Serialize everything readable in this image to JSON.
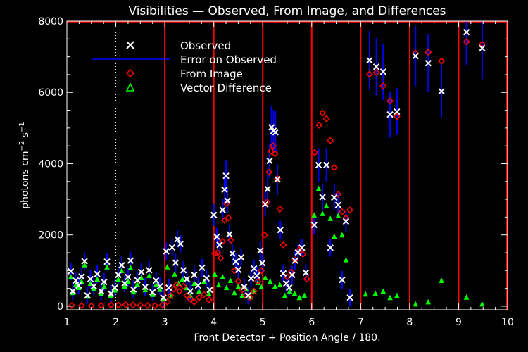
{
  "chart_data": {
    "type": "scatter",
    "title": "Visibilities — Observed, From Image, and Differences",
    "xlabel": "Front Detector + Position Angle / 180.",
    "ylabel_main": "photons cm",
    "ylabel_exp1": "−2",
    "ylabel_mid": " s",
    "ylabel_exp2": "−1",
    "xlim": [
      1,
      10
    ],
    "ylim": [
      -100,
      8000
    ],
    "xticks": [
      "1",
      "2",
      "3",
      "4",
      "5",
      "6",
      "7",
      "8",
      "9",
      "10"
    ],
    "yticks": [
      "0",
      "2000",
      "4000",
      "6000",
      "8000"
    ],
    "ytick_values": [
      0,
      2000,
      4000,
      6000,
      8000
    ],
    "detector_boundaries": [
      3,
      4,
      5,
      6,
      7,
      8,
      9
    ],
    "dotted_line_x": 2,
    "colors": {
      "observed": "#ffffff",
      "error": "#0000ff",
      "image": "#ff0000",
      "difference": "#00ff00",
      "boundary": "#ff0000",
      "axes": "#ffffff"
    },
    "legend": {
      "placement": "top-left",
      "entries": [
        {
          "label": "Observed",
          "marker": "x"
        },
        {
          "label": "Error on Observed",
          "marker": "line"
        },
        {
          "label": "From Image",
          "marker": "diamond"
        },
        {
          "label": "Vector Difference",
          "marker": "triangle"
        }
      ]
    },
    "series": [
      {
        "name": "Observed",
        "points": [
          [
            1.08,
            980
          ],
          [
            1.12,
            420
          ],
          [
            1.18,
            720
          ],
          [
            1.24,
            580
          ],
          [
            1.3,
            830
          ],
          [
            1.36,
            1260
          ],
          [
            1.42,
            300
          ],
          [
            1.48,
            760
          ],
          [
            1.55,
            560
          ],
          [
            1.62,
            900
          ],
          [
            1.7,
            420
          ],
          [
            1.76,
            680
          ],
          [
            1.82,
            1250
          ],
          [
            1.9,
            350
          ],
          [
            1.98,
            520
          ],
          [
            2.05,
            880
          ],
          [
            2.12,
            1150
          ],
          [
            2.18,
            640
          ],
          [
            2.25,
            820
          ],
          [
            2.3,
            1280
          ],
          [
            2.36,
            470
          ],
          [
            2.44,
            730
          ],
          [
            2.52,
            960
          ],
          [
            2.6,
            540
          ],
          [
            2.68,
            1010
          ],
          [
            2.75,
            390
          ],
          [
            2.82,
            720
          ],
          [
            2.9,
            560
          ],
          [
            2.97,
            240
          ],
          [
            3.03,
            1540
          ],
          [
            3.08,
            520
          ],
          [
            3.15,
            1650
          ],
          [
            3.22,
            1220
          ],
          [
            3.26,
            1880
          ],
          [
            3.32,
            1750
          ],
          [
            3.38,
            1010
          ],
          [
            3.45,
            760
          ],
          [
            3.52,
            420
          ],
          [
            3.6,
            880
          ],
          [
            3.68,
            580
          ],
          [
            3.76,
            1080
          ],
          [
            3.85,
            780
          ],
          [
            3.92,
            460
          ],
          [
            4.0,
            2560
          ],
          [
            4.06,
            1950
          ],
          [
            4.12,
            1720
          ],
          [
            4.18,
            2700
          ],
          [
            4.22,
            3270
          ],
          [
            4.25,
            3660
          ],
          [
            4.28,
            2960
          ],
          [
            4.32,
            2020
          ],
          [
            4.38,
            1480
          ],
          [
            4.45,
            1250
          ],
          [
            4.5,
            1020
          ],
          [
            4.56,
            1370
          ],
          [
            4.62,
            540
          ],
          [
            4.7,
            300
          ],
          [
            4.76,
            780
          ],
          [
            4.82,
            1060
          ],
          [
            4.88,
            860
          ],
          [
            4.95,
            1560
          ],
          [
            4.99,
            1210
          ],
          [
            5.05,
            2860
          ],
          [
            5.1,
            3290
          ],
          [
            5.14,
            4080
          ],
          [
            5.18,
            5020
          ],
          [
            5.22,
            4920
          ],
          [
            5.26,
            4880
          ],
          [
            5.3,
            3560
          ],
          [
            5.36,
            2140
          ],
          [
            5.42,
            920
          ],
          [
            5.48,
            640
          ],
          [
            5.54,
            520
          ],
          [
            5.6,
            880
          ],
          [
            5.66,
            1280
          ],
          [
            5.72,
            1510
          ],
          [
            5.8,
            1640
          ],
          [
            5.88,
            940
          ],
          [
            6.05,
            2280
          ],
          [
            6.14,
            3960
          ],
          [
            6.22,
            3060
          ],
          [
            6.3,
            3960
          ],
          [
            6.38,
            1640
          ],
          [
            6.46,
            3050
          ],
          [
            6.54,
            2840
          ],
          [
            6.62,
            740
          ],
          [
            6.7,
            2380
          ],
          [
            6.78,
            240
          ],
          [
            7.18,
            6900
          ],
          [
            7.32,
            6720
          ],
          [
            7.46,
            6580
          ],
          [
            7.6,
            5380
          ],
          [
            7.74,
            5460
          ],
          [
            8.12,
            7020
          ],
          [
            8.38,
            6820
          ],
          [
            8.65,
            6030
          ],
          [
            9.16,
            7690
          ],
          [
            9.48,
            7240
          ]
        ]
      },
      {
        "name": "From Image",
        "points": [
          [
            1.1,
            20
          ],
          [
            1.3,
            15
          ],
          [
            1.5,
            10
          ],
          [
            1.7,
            20
          ],
          [
            1.9,
            30
          ],
          [
            2.05,
            35
          ],
          [
            2.2,
            40
          ],
          [
            2.35,
            30
          ],
          [
            2.5,
            25
          ],
          [
            2.65,
            20
          ],
          [
            2.8,
            15
          ],
          [
            2.95,
            30
          ],
          [
            3.05,
            120
          ],
          [
            3.12,
            300
          ],
          [
            3.18,
            480
          ],
          [
            3.24,
            600
          ],
          [
            3.3,
            420
          ],
          [
            3.38,
            560
          ],
          [
            3.45,
            300
          ],
          [
            3.52,
            200
          ],
          [
            3.6,
            120
          ],
          [
            3.7,
            240
          ],
          [
            3.8,
            330
          ],
          [
            3.9,
            180
          ],
          [
            4.02,
            1480
          ],
          [
            4.08,
            1500
          ],
          [
            4.14,
            1350
          ],
          [
            4.18,
            1820
          ],
          [
            4.22,
            2410
          ],
          [
            4.26,
            2880
          ],
          [
            4.3,
            2480
          ],
          [
            4.35,
            1850
          ],
          [
            4.42,
            1000
          ],
          [
            4.5,
            700
          ],
          [
            4.58,
            460
          ],
          [
            4.66,
            300
          ],
          [
            4.74,
            250
          ],
          [
            4.82,
            420
          ],
          [
            4.9,
            700
          ],
          [
            4.97,
            1000
          ],
          [
            5.04,
            2000
          ],
          [
            5.09,
            2920
          ],
          [
            5.13,
            3760
          ],
          [
            5.17,
            4350
          ],
          [
            5.21,
            4500
          ],
          [
            5.25,
            4280
          ],
          [
            5.3,
            3580
          ],
          [
            5.35,
            2730
          ],
          [
            5.42,
            1720
          ],
          [
            5.5,
            820
          ],
          [
            5.58,
            960
          ],
          [
            5.66,
            1300
          ],
          [
            5.74,
            1580
          ],
          [
            5.82,
            1460
          ],
          [
            5.9,
            760
          ],
          [
            6.06,
            4310
          ],
          [
            6.15,
            5080
          ],
          [
            6.22,
            5420
          ],
          [
            6.3,
            5260
          ],
          [
            6.38,
            4650
          ],
          [
            6.46,
            3890
          ],
          [
            6.54,
            3140
          ],
          [
            6.62,
            2650
          ],
          [
            6.7,
            2480
          ],
          [
            6.78,
            2700
          ],
          [
            7.18,
            6510
          ],
          [
            7.32,
            6560
          ],
          [
            7.46,
            6180
          ],
          [
            7.6,
            5760
          ],
          [
            7.74,
            5320
          ],
          [
            8.12,
            7100
          ],
          [
            8.38,
            7130
          ],
          [
            8.65,
            6880
          ],
          [
            9.16,
            7420
          ],
          [
            9.48,
            7350
          ]
        ]
      },
      {
        "name": "Vector Difference",
        "points": [
          [
            1.08,
            820
          ],
          [
            1.12,
            380
          ],
          [
            1.18,
            600
          ],
          [
            1.24,
            520
          ],
          [
            1.3,
            700
          ],
          [
            1.36,
            1160
          ],
          [
            1.42,
            280
          ],
          [
            1.48,
            640
          ],
          [
            1.55,
            500
          ],
          [
            1.62,
            760
          ],
          [
            1.7,
            360
          ],
          [
            1.76,
            560
          ],
          [
            1.82,
            1100
          ],
          [
            1.9,
            300
          ],
          [
            1.98,
            450
          ],
          [
            2.05,
            760
          ],
          [
            2.12,
            1000
          ],
          [
            2.18,
            560
          ],
          [
            2.25,
            700
          ],
          [
            2.3,
            1080
          ],
          [
            2.36,
            400
          ],
          [
            2.44,
            620
          ],
          [
            2.52,
            800
          ],
          [
            2.6,
            460
          ],
          [
            2.68,
            860
          ],
          [
            2.75,
            330
          ],
          [
            2.82,
            600
          ],
          [
            2.9,
            470
          ],
          [
            2.97,
            200
          ],
          [
            3.05,
            1100
          ],
          [
            3.12,
            280
          ],
          [
            3.2,
            900
          ],
          [
            3.28,
            640
          ],
          [
            3.36,
            760
          ],
          [
            3.44,
            520
          ],
          [
            3.52,
            300
          ],
          [
            3.6,
            640
          ],
          [
            3.7,
            420
          ],
          [
            3.8,
            700
          ],
          [
            3.9,
            360
          ],
          [
            4.02,
            900
          ],
          [
            4.1,
            600
          ],
          [
            4.18,
            820
          ],
          [
            4.26,
            520
          ],
          [
            4.34,
            720
          ],
          [
            4.42,
            380
          ],
          [
            4.5,
            560
          ],
          [
            4.58,
            300
          ],
          [
            4.66,
            480
          ],
          [
            4.74,
            260
          ],
          [
            4.82,
            420
          ],
          [
            4.9,
            660
          ],
          [
            4.97,
            540
          ],
          [
            5.05,
            800
          ],
          [
            5.15,
            700
          ],
          [
            5.25,
            560
          ],
          [
            5.35,
            600
          ],
          [
            5.45,
            300
          ],
          [
            5.55,
            420
          ],
          [
            5.65,
            360
          ],
          [
            5.75,
            240
          ],
          [
            5.85,
            300
          ],
          [
            6.05,
            2560
          ],
          [
            6.14,
            3300
          ],
          [
            6.22,
            2600
          ],
          [
            6.3,
            2820
          ],
          [
            6.38,
            2460
          ],
          [
            6.46,
            1960
          ],
          [
            6.54,
            2540
          ],
          [
            6.62,
            2000
          ],
          [
            6.7,
            1300
          ],
          [
            7.1,
            340
          ],
          [
            7.3,
            360
          ],
          [
            7.46,
            420
          ],
          [
            7.6,
            240
          ],
          [
            7.74,
            300
          ],
          [
            8.12,
            60
          ],
          [
            8.38,
            120
          ],
          [
            8.65,
            720
          ],
          [
            9.16,
            250
          ],
          [
            9.48,
            60
          ]
        ]
      }
    ]
  }
}
